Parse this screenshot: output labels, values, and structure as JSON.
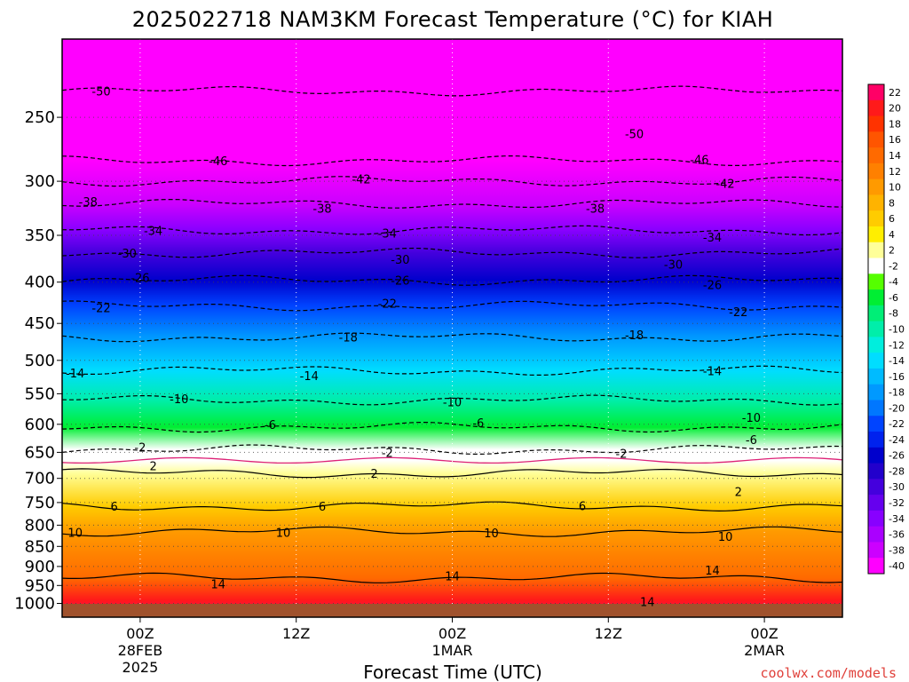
{
  "chart_data": {
    "type": "heatmap",
    "title": "2025022718 NAM3KM Forecast Temperature (°C) for KIAH",
    "xlabel": "Forecast Time (UTC)",
    "ylabel": "",
    "credit": "coolwx.com/models",
    "y_scale": "log-pressure",
    "y_range_hpa": [
      1040,
      200
    ],
    "y_ticks": [
      250,
      300,
      350,
      400,
      450,
      500,
      550,
      600,
      650,
      700,
      750,
      800,
      850,
      900,
      950,
      1000
    ],
    "x_range_hours": [
      18,
      78
    ],
    "x_ticks": [
      {
        "hour": 24,
        "lines": [
          "00Z",
          "28FEB",
          "2025"
        ]
      },
      {
        "hour": 36,
        "lines": [
          "12Z"
        ]
      },
      {
        "hour": 48,
        "lines": [
          "00Z",
          "1MAR"
        ]
      },
      {
        "hour": 60,
        "lines": [
          "12Z"
        ]
      },
      {
        "hour": 72,
        "lines": [
          "00Z",
          "2MAR"
        ]
      }
    ],
    "colorbar": {
      "levels": [
        22,
        20,
        18,
        16,
        14,
        12,
        10,
        8,
        6,
        4,
        2,
        -2,
        -4,
        -6,
        -8,
        -10,
        -12,
        -14,
        -16,
        -18,
        -20,
        -22,
        -24,
        -26,
        -28,
        -30,
        -32,
        -34,
        -36,
        -38,
        -40
      ],
      "colors": [
        "#ff0066",
        "#ff1a1a",
        "#ff3300",
        "#ff5500",
        "#ff6a00",
        "#ff8000",
        "#ff9a00",
        "#ffb300",
        "#ffcc00",
        "#ffee00",
        "#ffff99",
        "#ffffff",
        "#55ff00",
        "#00ee33",
        "#00ee77",
        "#00eeaa",
        "#00eedd",
        "#00ddff",
        "#00bbff",
        "#0099ff",
        "#0077ff",
        "#0044ff",
        "#0022ee",
        "#0000cc",
        "#2200cc",
        "#4400dd",
        "#6600ee",
        "#8800ff",
        "#aa00ff",
        "#cc00ff",
        "#ff00ff"
      ]
    },
    "contours": [
      {
        "value": -50,
        "pressure": 232
      },
      {
        "value": -46,
        "pressure": 283
      },
      {
        "value": -42,
        "pressure": 300
      },
      {
        "value": -38,
        "pressure": 320
      },
      {
        "value": -34,
        "pressure": 345
      },
      {
        "value": -30,
        "pressure": 368
      },
      {
        "value": -26,
        "pressure": 398
      },
      {
        "value": -22,
        "pressure": 428
      },
      {
        "value": -18,
        "pressure": 468
      },
      {
        "value": -14,
        "pressure": 515
      },
      {
        "value": -10,
        "pressure": 560
      },
      {
        "value": -6,
        "pressure": 605
      },
      {
        "value": -2,
        "pressure": 645
      },
      {
        "value": 2,
        "pressure": 690
      },
      {
        "value": 6,
        "pressure": 758
      },
      {
        "value": 10,
        "pressure": 815
      },
      {
        "value": 14,
        "pressure": 930
      }
    ],
    "contour_labels": [
      {
        "text": "-50",
        "hour": 21,
        "pressure": 232
      },
      {
        "text": "-50",
        "hour": 62,
        "pressure": 262
      },
      {
        "text": "-46",
        "hour": 30,
        "pressure": 283
      },
      {
        "text": "-46",
        "hour": 67,
        "pressure": 282
      },
      {
        "text": "-42",
        "hour": 41,
        "pressure": 298
      },
      {
        "text": "-42",
        "hour": 69,
        "pressure": 302
      },
      {
        "text": "-38",
        "hour": 20,
        "pressure": 318
      },
      {
        "text": "-38",
        "hour": 38,
        "pressure": 324
      },
      {
        "text": "-38",
        "hour": 59,
        "pressure": 324
      },
      {
        "text": "-34",
        "hour": 25,
        "pressure": 345
      },
      {
        "text": "-34",
        "hour": 43,
        "pressure": 348
      },
      {
        "text": "-34",
        "hour": 68,
        "pressure": 352
      },
      {
        "text": "-30",
        "hour": 23,
        "pressure": 368
      },
      {
        "text": "-30",
        "hour": 44,
        "pressure": 375
      },
      {
        "text": "-30",
        "hour": 65,
        "pressure": 380
      },
      {
        "text": "-26",
        "hour": 24,
        "pressure": 395
      },
      {
        "text": "-26",
        "hour": 44,
        "pressure": 398
      },
      {
        "text": "-26",
        "hour": 68,
        "pressure": 403
      },
      {
        "text": "-22",
        "hour": 21,
        "pressure": 430
      },
      {
        "text": "-22",
        "hour": 43,
        "pressure": 425
      },
      {
        "text": "-22",
        "hour": 70,
        "pressure": 435
      },
      {
        "text": "-18",
        "hour": 40,
        "pressure": 468
      },
      {
        "text": "-18",
        "hour": 62,
        "pressure": 465
      },
      {
        "text": "-14",
        "hour": 19,
        "pressure": 518
      },
      {
        "text": "-14",
        "hour": 37,
        "pressure": 522
      },
      {
        "text": "-14",
        "hour": 68,
        "pressure": 515
      },
      {
        "text": "-10",
        "hour": 27,
        "pressure": 558
      },
      {
        "text": "-10",
        "hour": 48,
        "pressure": 563
      },
      {
        "text": "-10",
        "hour": 71,
        "pressure": 588
      },
      {
        "text": "-6",
        "hour": 34,
        "pressure": 600
      },
      {
        "text": "-6",
        "hour": 50,
        "pressure": 597
      },
      {
        "text": "-6",
        "hour": 71,
        "pressure": 627
      },
      {
        "text": "-2",
        "hour": 24,
        "pressure": 640
      },
      {
        "text": "-2",
        "hour": 43,
        "pressure": 650
      },
      {
        "text": "-2",
        "hour": 61,
        "pressure": 652
      },
      {
        "text": "2",
        "hour": 25,
        "pressure": 675
      },
      {
        "text": "2",
        "hour": 42,
        "pressure": 690
      },
      {
        "text": "2",
        "hour": 70,
        "pressure": 727
      },
      {
        "text": "6",
        "hour": 22,
        "pressure": 758
      },
      {
        "text": "6",
        "hour": 38,
        "pressure": 758
      },
      {
        "text": "6",
        "hour": 58,
        "pressure": 757
      },
      {
        "text": "10",
        "hour": 19,
        "pressure": 817
      },
      {
        "text": "10",
        "hour": 35,
        "pressure": 817
      },
      {
        "text": "10",
        "hour": 51,
        "pressure": 818
      },
      {
        "text": "10",
        "hour": 69,
        "pressure": 826
      },
      {
        "text": "14",
        "hour": 30,
        "pressure": 946
      },
      {
        "text": "14",
        "hour": 48,
        "pressure": 924
      },
      {
        "text": "14",
        "hour": 68,
        "pressure": 909
      },
      {
        "text": "14",
        "hour": 63,
        "pressure": 995
      }
    ]
  }
}
